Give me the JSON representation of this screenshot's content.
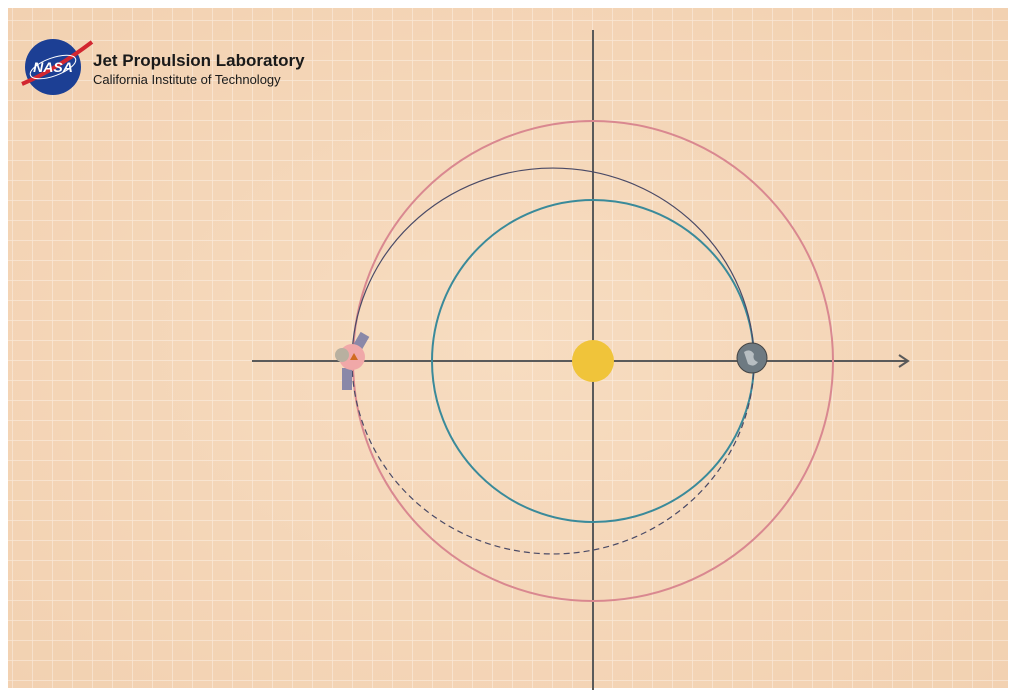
{
  "header": {
    "logo": "NASA",
    "title": "Jet Propulsion Laboratory",
    "subtitle": "California Institute of Technology"
  }
}
